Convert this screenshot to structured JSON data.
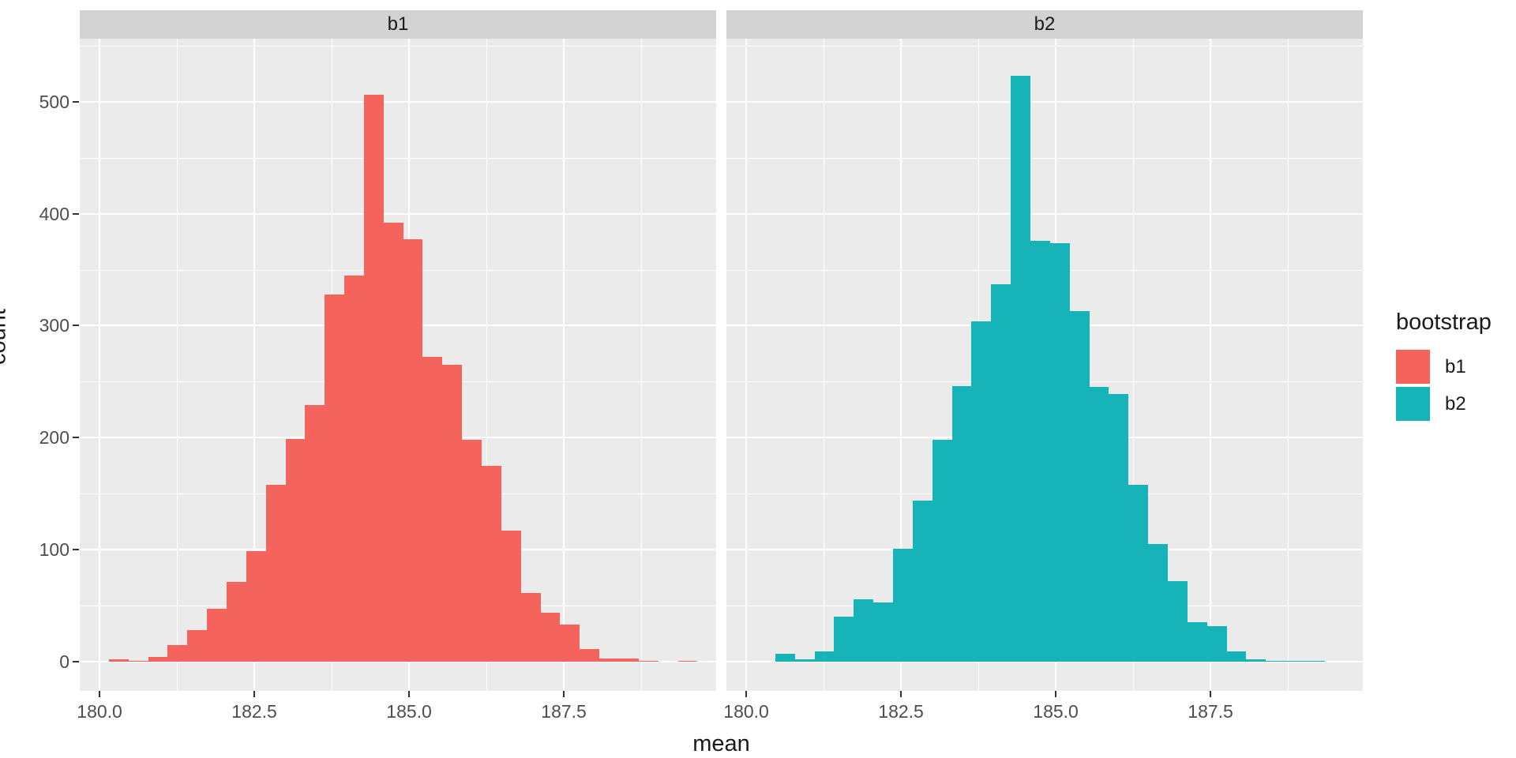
{
  "chart": {
    "xlabel": "mean",
    "ylabel": "count",
    "legend": {
      "title": "bootstrap",
      "items": [
        {
          "label": "b1",
          "color": "#f4645d"
        },
        {
          "label": "b2",
          "color": "#16b3b9"
        }
      ]
    },
    "facets": [
      {
        "label": "b1",
        "color": "#f4645d"
      },
      {
        "label": "b2",
        "color": "#16b3b9"
      }
    ]
  },
  "chart_data": {
    "type": "histogram",
    "faceted_by": "bootstrap",
    "facet_layout": "two panels side by side, shared axes",
    "xlabel": "mean",
    "ylabel": "count",
    "x_tick_labels": [
      "180.0",
      "182.5",
      "185.0",
      "187.5"
    ],
    "x_ticks": [
      180.0,
      182.5,
      185.0,
      187.5
    ],
    "y_tick_labels": [
      "0",
      "100",
      "200",
      "300",
      "400",
      "500"
    ],
    "y_ticks": [
      0,
      100,
      200,
      300,
      400,
      500
    ],
    "x_range": [
      179.68,
      189.96
    ],
    "y_range": [
      -26,
      556
    ],
    "grid": "white major and minor gridlines on gray panel (ggplot style)",
    "legend_position": "right",
    "series": [
      {
        "name": "b1",
        "color": "#f4645d",
        "bin_start": 180.15,
        "bin_width": 0.317,
        "counts": [
          2,
          1,
          4,
          15,
          28,
          47,
          71,
          99,
          158,
          199,
          229,
          328,
          345,
          506,
          392,
          377,
          272,
          265,
          198,
          175,
          117,
          61,
          44,
          33,
          11,
          3,
          3,
          1,
          0,
          1
        ]
      },
      {
        "name": "b2",
        "color": "#16b3b9",
        "bin_start": 180.47,
        "bin_width": 0.317,
        "counts": [
          7,
          2,
          9,
          40,
          56,
          53,
          101,
          144,
          198,
          246,
          304,
          337,
          523,
          376,
          374,
          313,
          245,
          239,
          158,
          105,
          72,
          35,
          32,
          9,
          2,
          1,
          1,
          1
        ]
      }
    ]
  }
}
